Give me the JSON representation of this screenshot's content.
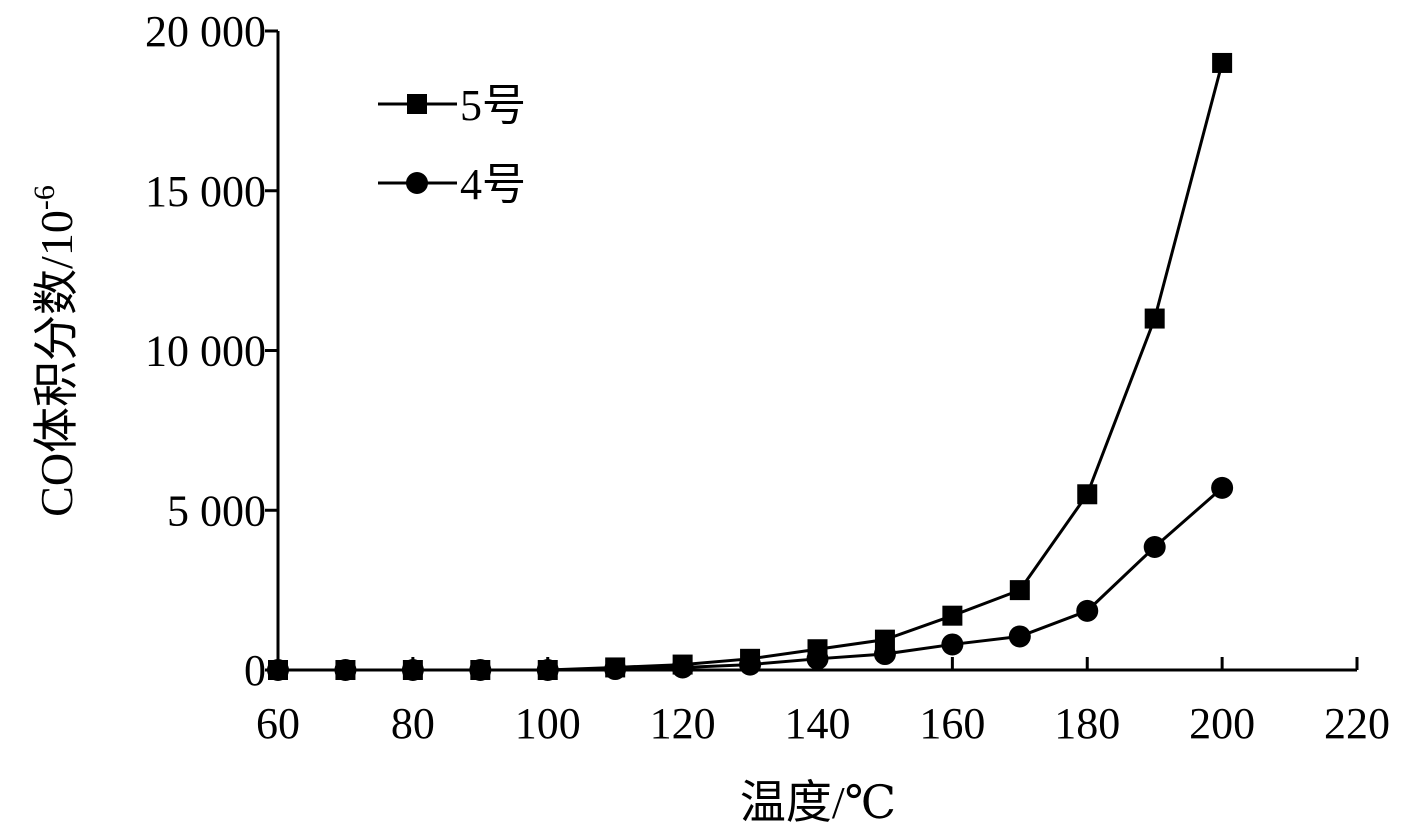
{
  "chart_data": {
    "type": "line",
    "x": [
      60,
      70,
      80,
      90,
      100,
      110,
      120,
      130,
      140,
      150,
      160,
      170,
      180,
      190,
      200
    ],
    "series": [
      {
        "name": "5号",
        "marker": "square",
        "values": [
          0,
          0,
          0,
          0,
          0,
          80,
          170,
          350,
          650,
          950,
          1700,
          2500,
          5500,
          11000,
          19000
        ]
      },
      {
        "name": "4号",
        "marker": "circle",
        "values": [
          0,
          0,
          0,
          0,
          0,
          30,
          80,
          170,
          350,
          500,
          800,
          1050,
          1850,
          3850,
          5700
        ]
      }
    ],
    "xlabel": "温度/℃",
    "ylabel": "CO体积分数/10",
    "ylabel_superscript": "-6",
    "xlim": [
      60,
      220
    ],
    "ylim": [
      0,
      20000
    ],
    "x_ticks": [
      60,
      80,
      100,
      120,
      140,
      160,
      180,
      200,
      220
    ],
    "x_tick_labels": [
      "60",
      "80",
      "100",
      "120",
      "140",
      "160",
      "180",
      "200",
      "220"
    ],
    "y_ticks": [
      0,
      5000,
      10000,
      15000,
      20000
    ],
    "y_tick_labels": [
      "0",
      "5 000",
      "10 000",
      "15 000",
      "20 000"
    ],
    "grid": false,
    "legend_position": "top-left",
    "colors": {
      "line": "#000000",
      "marker": "#000000",
      "axis": "#000000"
    }
  }
}
